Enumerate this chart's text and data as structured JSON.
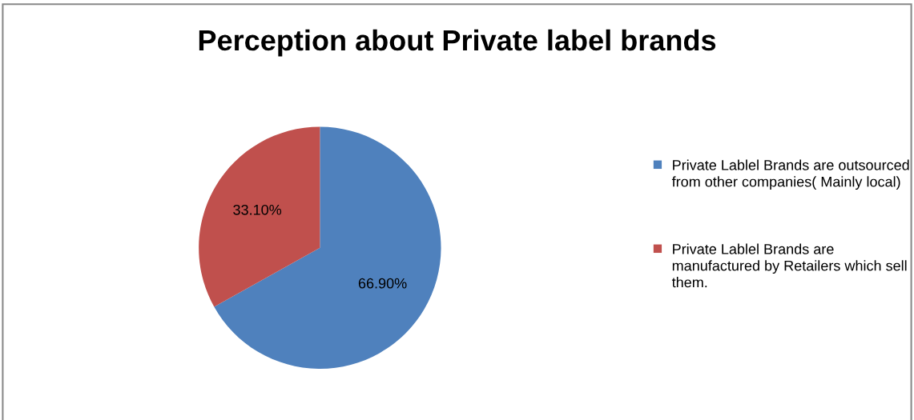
{
  "chart_data": {
    "type": "pie",
    "title": "Perception about Private label brands",
    "categories": [
      "Private Lablel Brands are outsourced from other companies( Mainly local)",
      "Private Lablel Brands are manufactured by Retailers which sell them."
    ],
    "values": [
      66.9,
      33.1
    ],
    "colors": [
      "#4f81bd",
      "#c0504d"
    ],
    "value_labels": [
      "66.90%",
      "33.10%"
    ],
    "legend": "right"
  }
}
